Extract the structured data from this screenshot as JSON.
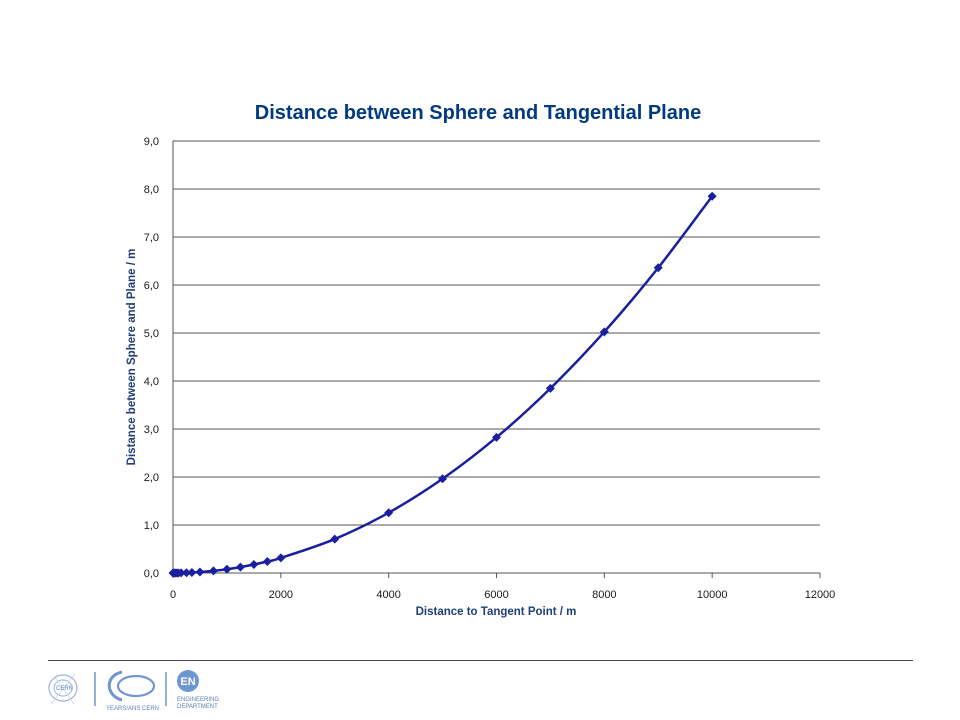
{
  "colors": {
    "title": "#003A80",
    "series": "#1A1F9E",
    "grid": "#1f1f1f",
    "axis_label": "#1F3F7A",
    "logo_blue": "#6E96D2"
  },
  "chart_data": {
    "type": "scatter",
    "title": "Distance between Sphere and Tangential Plane",
    "xlabel": "Distance to Tangent Point / m",
    "ylabel": "Distance between  Sphere and Plane / m",
    "xlim": [
      0,
      12000
    ],
    "ylim": [
      0,
      9
    ],
    "x_ticks": [
      "0",
      "2000",
      "4000",
      "6000",
      "8000",
      "10000",
      "12000"
    ],
    "y_ticks": [
      "0,0",
      "1,0",
      "2,0",
      "3,0",
      "4,0",
      "5,0",
      "6,0",
      "7,0",
      "8,0",
      "9,0"
    ],
    "grid": "horizontal",
    "legend": "none",
    "line": "smooth",
    "marker": "diamond",
    "series": [
      {
        "x": [
          0,
          10,
          25,
          50,
          75,
          100,
          150,
          250,
          350,
          500,
          750,
          1000,
          1250,
          1500,
          1750,
          2000,
          3000,
          4000,
          5000,
          6000,
          7000,
          8000,
          9000,
          10000
        ],
        "y": [
          0.0,
          0.0,
          0.0,
          0.0,
          0.0,
          0.001,
          0.002,
          0.005,
          0.01,
          0.02,
          0.044,
          0.078,
          0.123,
          0.177,
          0.24,
          0.314,
          0.707,
          1.256,
          1.963,
          2.826,
          3.847,
          5.024,
          6.359,
          7.85
        ]
      }
    ]
  },
  "footer": {
    "logo_cern": "CERN",
    "logo_60_caption": "YEARS/ANS CERN",
    "logo_en": "EN",
    "logo_en_caption_1": "ENGINEERING",
    "logo_en_caption_2": "DEPARTMENT"
  }
}
